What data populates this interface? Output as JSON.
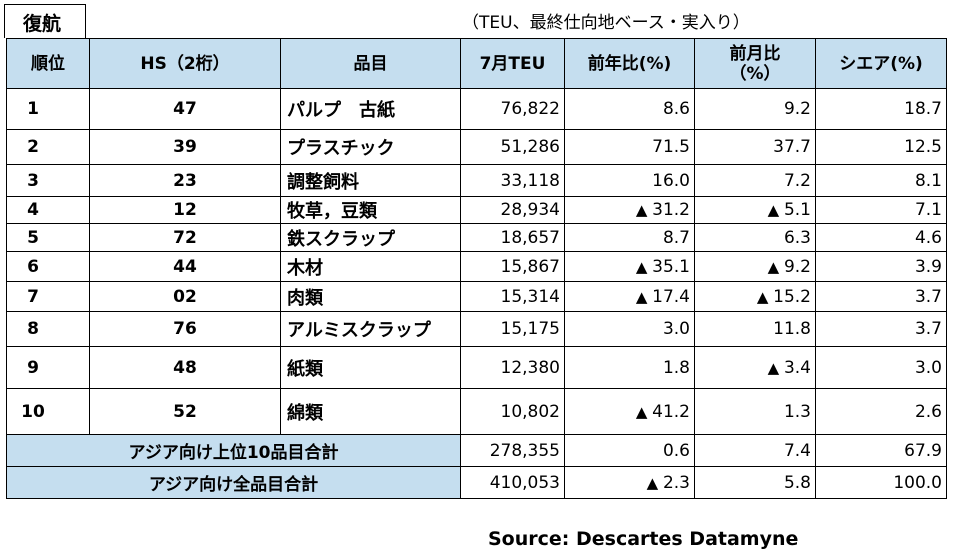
{
  "tab_label": "復航",
  "note": "（TEU、最終仕向地ベース・実入り）",
  "headers": {
    "rank": "順位",
    "hs": "HS（2桁）",
    "item": "品目",
    "teu": "7月TEU",
    "yoy": "前年比(%)",
    "mom_line1": "前月比",
    "mom_line2": "（%）",
    "share": "シエア(%)"
  },
  "triangle": "▲",
  "rows": [
    {
      "rank": "1",
      "hs": "47",
      "item": "パルプ　古紙",
      "teu": "76,822",
      "yoy": "8.6",
      "yoy_neg": false,
      "mom": "9.2",
      "mom_neg": false,
      "share": "18.7"
    },
    {
      "rank": "2",
      "hs": "39",
      "item": "プラスチック",
      "teu": "51,286",
      "yoy": "71.5",
      "yoy_neg": false,
      "mom": "37.7",
      "mom_neg": false,
      "share": "12.5"
    },
    {
      "rank": "3",
      "hs": "23",
      "item": "調整飼料",
      "teu": "33,118",
      "yoy": "16.0",
      "yoy_neg": false,
      "mom": "7.2",
      "mom_neg": false,
      "share": "8.1"
    },
    {
      "rank": "4",
      "hs": "12",
      "item": "牧草，豆類",
      "teu": "28,934",
      "yoy": "31.2",
      "yoy_neg": true,
      "mom": "5.1",
      "mom_neg": true,
      "share": "7.1"
    },
    {
      "rank": "5",
      "hs": "72",
      "item": "鉄スクラップ",
      "teu": "18,657",
      "yoy": "8.7",
      "yoy_neg": false,
      "mom": "6.3",
      "mom_neg": false,
      "share": "4.6"
    },
    {
      "rank": "6",
      "hs": "44",
      "item": "木材",
      "teu": "15,867",
      "yoy": "35.1",
      "yoy_neg": true,
      "mom": "9.2",
      "mom_neg": true,
      "share": "3.9"
    },
    {
      "rank": "7",
      "hs": "02",
      "item": "肉類",
      "teu": "15,314",
      "yoy": "17.4",
      "yoy_neg": true,
      "mom": "15.2",
      "mom_neg": true,
      "share": "3.7"
    },
    {
      "rank": "8",
      "hs": "76",
      "item": "アルミスクラップ",
      "teu": "15,175",
      "yoy": "3.0",
      "yoy_neg": false,
      "mom": "11.8",
      "mom_neg": false,
      "share": "3.7"
    },
    {
      "rank": "9",
      "hs": "48",
      "item": "紙類",
      "teu": "12,380",
      "yoy": "1.8",
      "yoy_neg": false,
      "mom": "3.4",
      "mom_neg": true,
      "share": "3.0"
    },
    {
      "rank": "10",
      "hs": "52",
      "item": "綿類",
      "teu": "10,802",
      "yoy": "41.2",
      "yoy_neg": true,
      "mom": "1.3",
      "mom_neg": false,
      "share": "2.6"
    }
  ],
  "totals": [
    {
      "label": "アジア向け上位10品目合計",
      "teu": "278,355",
      "yoy": "0.6",
      "yoy_neg": false,
      "mom": "7.4",
      "mom_neg": false,
      "share": "67.9"
    },
    {
      "label": "アジア向け全品目合計",
      "teu": "410,053",
      "yoy": "2.3",
      "yoy_neg": true,
      "mom": "5.8",
      "mom_neg": false,
      "share": "100.0"
    }
  ],
  "source": "Source: Descartes Datamyne"
}
